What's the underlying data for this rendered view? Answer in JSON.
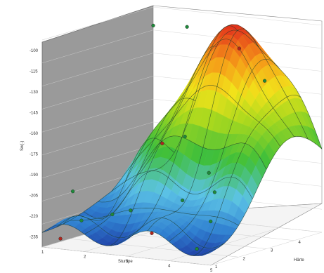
{
  "chart_data": {
    "type": "surface3d",
    "title": "",
    "ylabel": "Sw(-)",
    "xlabel": "Stumpe",
    "zlabel": "Härte",
    "ytick_labels": [
      "-100",
      "-115",
      "-130",
      "-145",
      "-160",
      "-175",
      "-190",
      "-205",
      "-220",
      "-235"
    ],
    "xtick_labels": [
      "1",
      "2",
      "3",
      "4",
      "5"
    ],
    "ztick_labels": [
      "1",
      "2",
      "3",
      "4",
      "5"
    ],
    "ylim": [
      -240,
      -95
    ],
    "colormap": [
      "#1b2f9b",
      "#2f7fd0",
      "#5cc3e6",
      "#3fbf3a",
      "#a8d81e",
      "#f2e21a",
      "#f59a18",
      "#e0251c"
    ],
    "grid": true,
    "sample_points": [
      {
        "x": 1.0,
        "z": 5.0,
        "y": -108
      },
      {
        "x": 2.0,
        "z": 4.7,
        "y": -104
      },
      {
        "x": 3.5,
        "z": 4.3,
        "y": -112
      },
      {
        "x": 4.5,
        "z": 3.7,
        "y": -128
      },
      {
        "x": 3.2,
        "z": 2.8,
        "y": -166
      },
      {
        "x": 2.2,
        "z": 3.5,
        "y": -178
      },
      {
        "x": 4.3,
        "z": 2.2,
        "y": -198
      },
      {
        "x": 3.8,
        "z": 1.8,
        "y": -203
      },
      {
        "x": 1.8,
        "z": 1.2,
        "y": -220
      },
      {
        "x": 2.4,
        "z": 1.4,
        "y": -215
      },
      {
        "x": 3.6,
        "z": 1.0,
        "y": -222
      },
      {
        "x": 4.6,
        "z": 1.6,
        "y": -214
      },
      {
        "x": 1.2,
        "z": 1.8,
        "y": -205
      },
      {
        "x": 1.5,
        "z": 0.9,
        "y": -232
      },
      {
        "x": 2.9,
        "z": 1.3,
        "y": -210
      },
      {
        "x": 3.9,
        "z": 2.6,
        "y": -188
      },
      {
        "x": 4.8,
        "z": 0.8,
        "y": -228
      }
    ]
  }
}
